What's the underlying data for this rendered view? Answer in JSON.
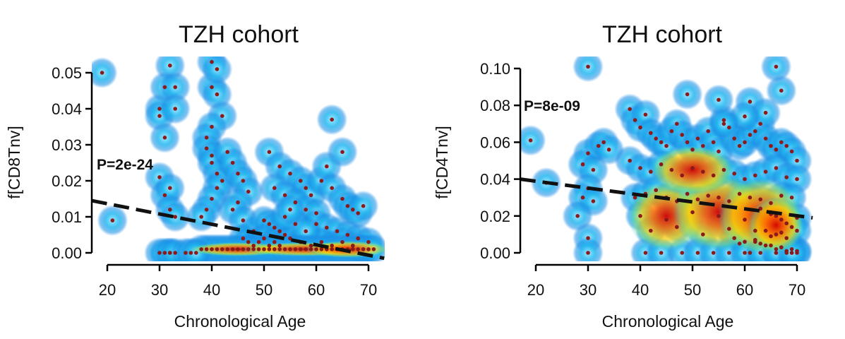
{
  "chart_data": [
    {
      "type": "scatter",
      "title": "TZH cohort",
      "xlabel": "Chronological Age",
      "ylabel": "f[CD8Tnv]",
      "annotation": "P=2e-24",
      "xlim": [
        17,
        73
      ],
      "ylim": [
        0,
        0.053
      ],
      "x_ticks": [
        20,
        30,
        40,
        50,
        60,
        70
      ],
      "x_tick_labels": [
        "20",
        "30",
        "40",
        "50",
        "60",
        "70"
      ],
      "y_ticks": [
        0,
        0.01,
        0.02,
        0.03,
        0.04,
        0.05
      ],
      "y_tick_labels": [
        "0.00",
        "0.01",
        "0.02",
        "0.03",
        "0.04",
        "0.05"
      ],
      "trend_line": {
        "x": [
          17,
          73
        ],
        "y": [
          0.0145,
          -0.0015
        ]
      },
      "density_overlay": "blue-to-red kernel density",
      "point_color": "#8b1a1a",
      "x": [
        19,
        21,
        30,
        30,
        31,
        32,
        31,
        33,
        33,
        30,
        31,
        32,
        32,
        33,
        32,
        40,
        40,
        41,
        41,
        42,
        40,
        39,
        39,
        40,
        40,
        41,
        42,
        41,
        40,
        39,
        38,
        43,
        44,
        45,
        46,
        47,
        45,
        44,
        46,
        48,
        51,
        53,
        55,
        57,
        58,
        59,
        52,
        54,
        56,
        58,
        60,
        61,
        62,
        63,
        65,
        66,
        67,
        68,
        69,
        50,
        51,
        52,
        53,
        54,
        60,
        62,
        64,
        66,
        68,
        70,
        46,
        47,
        48,
        49,
        50,
        51,
        52,
        53,
        55,
        57,
        59,
        61,
        63,
        65,
        67,
        69,
        63,
        65,
        56,
        58,
        54,
        55,
        30,
        31,
        32,
        33,
        38,
        39,
        40,
        41,
        42,
        43,
        44,
        45,
        46,
        47,
        48,
        49,
        50,
        51,
        52,
        53,
        54,
        55,
        56,
        57,
        58,
        59,
        60,
        61,
        62,
        63,
        64,
        65,
        66,
        67,
        68,
        69,
        70,
        71,
        35,
        36,
        37
      ],
      "y": [
        0.05,
        0.009,
        0.04,
        0.038,
        0.032,
        0.052,
        0.046,
        0.046,
        0.04,
        0.021,
        0.016,
        0.018,
        0.012,
        0.01,
        0.0,
        0.053,
        0.046,
        0.051,
        0.044,
        0.038,
        0.035,
        0.032,
        0.029,
        0.027,
        0.025,
        0.022,
        0.02,
        0.018,
        0.015,
        0.012,
        0.01,
        0.028,
        0.025,
        0.022,
        0.02,
        0.017,
        0.014,
        0.012,
        0.009,
        0.006,
        0.028,
        0.024,
        0.022,
        0.02,
        0.018,
        0.016,
        0.018,
        0.016,
        0.014,
        0.012,
        0.011,
        0.02,
        0.024,
        0.018,
        0.015,
        0.013,
        0.012,
        0.011,
        0.013,
        0.009,
        0.008,
        0.007,
        0.006,
        0.005,
        0.008,
        0.007,
        0.006,
        0.005,
        0.004,
        0.003,
        0.004,
        0.003,
        0.002,
        0.003,
        0.004,
        0.002,
        0.003,
        0.002,
        0.004,
        0.003,
        0.002,
        0.003,
        0.002,
        0.003,
        0.002,
        0.001,
        0.037,
        0.028,
        0.008,
        0.006,
        0.01,
        0.012,
        0.0,
        0.0,
        0.0,
        0.0,
        0.001,
        0.001,
        0.001,
        0.001,
        0.001,
        0.001,
        0.001,
        0.001,
        0.001,
        0.001,
        0.001,
        0.001,
        0.001,
        0.001,
        0.001,
        0.001,
        0.001,
        0.001,
        0.001,
        0.001,
        0.001,
        0.001,
        0.001,
        0.001,
        0.001,
        0.001,
        0.001,
        0.001,
        0.001,
        0.001,
        0.001,
        0.001,
        0.001,
        0.001,
        0.0,
        0.0,
        0.0
      ]
    },
    {
      "type": "scatter",
      "title": "TZH cohort",
      "xlabel": "Chronological Age",
      "ylabel": "f[CD4Tnv]",
      "annotation": "P=8e-09",
      "xlim": [
        17,
        73
      ],
      "ylim": [
        0,
        0.102
      ],
      "x_ticks": [
        20,
        30,
        40,
        50,
        60,
        70
      ],
      "x_tick_labels": [
        "20",
        "30",
        "40",
        "50",
        "60",
        "70"
      ],
      "y_ticks": [
        0,
        0.02,
        0.04,
        0.06,
        0.08,
        0.1
      ],
      "y_tick_labels": [
        "0.00",
        "0.02",
        "0.04",
        "0.06",
        "0.08",
        "0.10"
      ],
      "trend_line": {
        "x": [
          17,
          73
        ],
        "y": [
          0.04,
          0.019
        ]
      },
      "density_overlay": "blue-to-red kernel density",
      "point_color": "#8b1a1a",
      "x": [
        19,
        22,
        30,
        30,
        29,
        31,
        32,
        33,
        34,
        30,
        29,
        31,
        28,
        30,
        30,
        38,
        39,
        40,
        41,
        42,
        43,
        44,
        45,
        46,
        47,
        48,
        49,
        50,
        51,
        52,
        53,
        54,
        55,
        56,
        57,
        58,
        59,
        60,
        61,
        62,
        63,
        64,
        65,
        66,
        67,
        68,
        69,
        70,
        38,
        40,
        42,
        44,
        46,
        48,
        50,
        52,
        54,
        56,
        58,
        60,
        62,
        64,
        66,
        68,
        70,
        39,
        41,
        43,
        45,
        47,
        49,
        51,
        53,
        55,
        57,
        59,
        61,
        63,
        65,
        67,
        69,
        40,
        45,
        50,
        55,
        60,
        65,
        70,
        42,
        47,
        52,
        57,
        62,
        67,
        49,
        55,
        61,
        66,
        67,
        64,
        60,
        56,
        63,
        65,
        66,
        67,
        68,
        69,
        70,
        64,
        66,
        68,
        62,
        63,
        65,
        67,
        69,
        70,
        61,
        66,
        68,
        59,
        62,
        65,
        67,
        69,
        58,
        60,
        64,
        66,
        68,
        70,
        41,
        44,
        48,
        51,
        54,
        57,
        60,
        63,
        66,
        69
      ],
      "y": [
        0.061,
        0.038,
        0.101,
        0.054,
        0.048,
        0.045,
        0.058,
        0.06,
        0.056,
        0.035,
        0.03,
        0.028,
        0.02,
        0.008,
        0.0,
        0.078,
        0.072,
        0.068,
        0.075,
        0.065,
        0.062,
        0.06,
        0.058,
        0.066,
        0.07,
        0.064,
        0.06,
        0.056,
        0.062,
        0.058,
        0.066,
        0.06,
        0.055,
        0.072,
        0.068,
        0.062,
        0.058,
        0.06,
        0.064,
        0.066,
        0.07,
        0.062,
        0.058,
        0.056,
        0.06,
        0.058,
        0.055,
        0.05,
        0.05,
        0.046,
        0.044,
        0.048,
        0.045,
        0.042,
        0.046,
        0.044,
        0.042,
        0.045,
        0.043,
        0.04,
        0.042,
        0.044,
        0.046,
        0.041,
        0.04,
        0.03,
        0.032,
        0.034,
        0.03,
        0.028,
        0.032,
        0.029,
        0.031,
        0.03,
        0.028,
        0.032,
        0.03,
        0.029,
        0.027,
        0.031,
        0.03,
        0.02,
        0.018,
        0.022,
        0.02,
        0.018,
        0.021,
        0.019,
        0.012,
        0.014,
        0.01,
        0.013,
        0.012,
        0.011,
        0.086,
        0.083,
        0.082,
        0.101,
        0.088,
        0.076,
        0.074,
        0.07,
        0.024,
        0.022,
        0.02,
        0.018,
        0.016,
        0.014,
        0.012,
        0.012,
        0.01,
        0.008,
        0.006,
        0.005,
        0.004,
        0.003,
        0.002,
        0.001,
        0.0,
        0.0,
        0.0,
        0.005,
        0.007,
        0.009,
        0.003,
        0.0,
        0.008,
        0.006,
        0.004,
        0.002,
        0.001,
        0.0,
        0.0,
        0.0,
        0.0,
        0.0,
        0.0,
        0.0,
        0.0,
        0.0,
        0.0,
        0.0
      ]
    }
  ]
}
